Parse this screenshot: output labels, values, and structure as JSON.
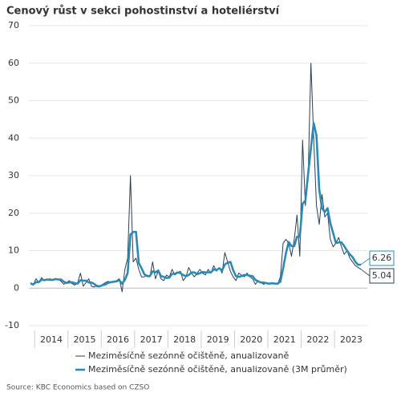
{
  "chart_data": {
    "type": "line",
    "title": "Cenový růst v sekci pohostinství a hoteliérství",
    "source": "Source: KBC Economics based on CZSO",
    "categories": [
      null,
      null,
      null,
      null,
      null,
      null,
      null,
      null,
      "2014",
      null,
      null,
      null,
      null,
      null,
      null,
      null,
      null,
      null,
      null,
      null,
      "2015",
      null,
      null,
      null,
      null,
      null,
      null,
      null,
      null,
      null,
      null,
      null,
      "2016",
      null,
      null,
      null,
      null,
      null,
      null,
      null,
      null,
      null,
      null,
      null,
      "2017",
      null,
      null,
      null,
      null,
      null,
      null,
      null,
      null,
      null,
      null,
      null,
      "2018",
      null,
      null,
      null,
      null,
      null,
      null,
      null,
      null,
      null,
      null,
      null,
      "2019",
      null,
      null,
      null,
      null,
      null,
      null,
      null,
      null,
      null,
      null,
      null,
      "2020",
      null,
      null,
      null,
      null,
      null,
      null,
      null,
      null,
      null,
      null,
      null,
      "2021",
      null,
      null,
      null,
      null,
      null,
      null,
      null,
      null,
      null,
      null,
      null,
      "2022",
      null,
      null,
      null,
      null,
      null,
      null,
      null,
      null,
      null,
      null,
      null,
      "2023",
      null,
      null,
      null
    ],
    "series": [
      {
        "name": "Meziměsíčně sezónně očištěně, anualizovaně",
        "color": "#2d3e55",
        "width": 1,
        "values": [
          1.5,
          0.8,
          2.5,
          1.5,
          2.8,
          2.0,
          2.2,
          2.5,
          2.0,
          2.6,
          2.4,
          1.8,
          1.0,
          1.5,
          2.0,
          1.2,
          0.8,
          1.5,
          4.0,
          0.5,
          1.5,
          2.5,
          0.5,
          0.3,
          0.8,
          0.5,
          1.0,
          1.5,
          1.8,
          1.5,
          1.8,
          2.0,
          2.5,
          -1.0,
          5.0,
          8.0,
          30.0,
          7.0,
          8.0,
          5.0,
          3.0,
          3.0,
          3.5,
          3.0,
          7.0,
          2.5,
          4.5,
          2.5,
          2.0,
          3.5,
          3.0,
          5.0,
          3.5,
          4.0,
          4.5,
          2.0,
          3.0,
          5.5,
          4.0,
          3.0,
          4.0,
          5.0,
          4.0,
          3.5,
          5.0,
          4.0,
          6.0,
          4.5,
          5.5,
          4.0,
          9.5,
          7.0,
          4.5,
          3.0,
          2.0,
          4.0,
          3.5,
          3.0,
          4.0,
          3.0,
          2.5,
          1.0,
          2.0,
          1.5,
          1.0,
          1.5,
          1.0,
          1.5,
          1.2,
          1.0,
          3.0,
          12.0,
          13.0,
          12.0,
          8.5,
          13.0,
          19.5,
          8.5,
          39.5,
          22.0,
          30.0,
          60.0,
          40.0,
          22.0,
          17.0,
          25.0,
          19.0,
          20.0,
          13.0,
          11.0,
          12.0,
          13.5,
          11.0,
          9.0,
          10.0,
          8.0,
          7.0,
          6.0,
          5.5,
          5.04
        ]
      },
      {
        "name": "Meziměsíčně sezónně očištěně, anualizovaně (3M průměr)",
        "color": "#2a8ab5",
        "width": 2.6,
        "values": [
          1.2,
          1.0,
          1.6,
          1.6,
          2.3,
          2.1,
          2.3,
          2.2,
          2.2,
          2.4,
          2.3,
          2.3,
          1.7,
          1.4,
          1.5,
          1.6,
          1.3,
          1.2,
          2.1,
          2.0,
          2.0,
          1.5,
          1.5,
          1.1,
          0.5,
          0.5,
          0.8,
          1.0,
          1.4,
          1.6,
          1.7,
          1.8,
          2.1,
          1.2,
          2.2,
          4.0,
          14.3,
          15.0,
          15.0,
          6.7,
          5.3,
          3.7,
          3.2,
          3.2,
          4.5,
          4.2,
          4.7,
          3.2,
          3.0,
          2.7,
          2.8,
          3.8,
          3.8,
          4.2,
          4.0,
          3.5,
          3.2,
          3.5,
          4.2,
          4.2,
          3.7,
          4.0,
          4.3,
          4.2,
          4.2,
          4.2,
          5.0,
          4.8,
          5.3,
          4.7,
          6.3,
          6.8,
          7.0,
          4.8,
          3.2,
          3.0,
          3.2,
          3.5,
          3.5,
          3.3,
          3.2,
          2.2,
          1.8,
          1.5,
          1.5,
          1.3,
          1.2,
          1.3,
          1.2,
          1.2,
          1.7,
          5.3,
          9.3,
          12.3,
          11.2,
          11.2,
          13.7,
          13.7,
          22.5,
          23.3,
          30.5,
          37.3,
          44.0,
          40.7,
          26.3,
          21.3,
          20.3,
          21.3,
          17.3,
          14.7,
          12.0,
          12.2,
          12.2,
          11.2,
          10.0,
          9.0,
          8.3,
          7.0,
          6.2,
          6.26
        ]
      }
    ],
    "ylim": [
      -10,
      70
    ],
    "yticks": [
      -10,
      0,
      10,
      20,
      30,
      40,
      50,
      60,
      70
    ],
    "grid": true
  }
}
